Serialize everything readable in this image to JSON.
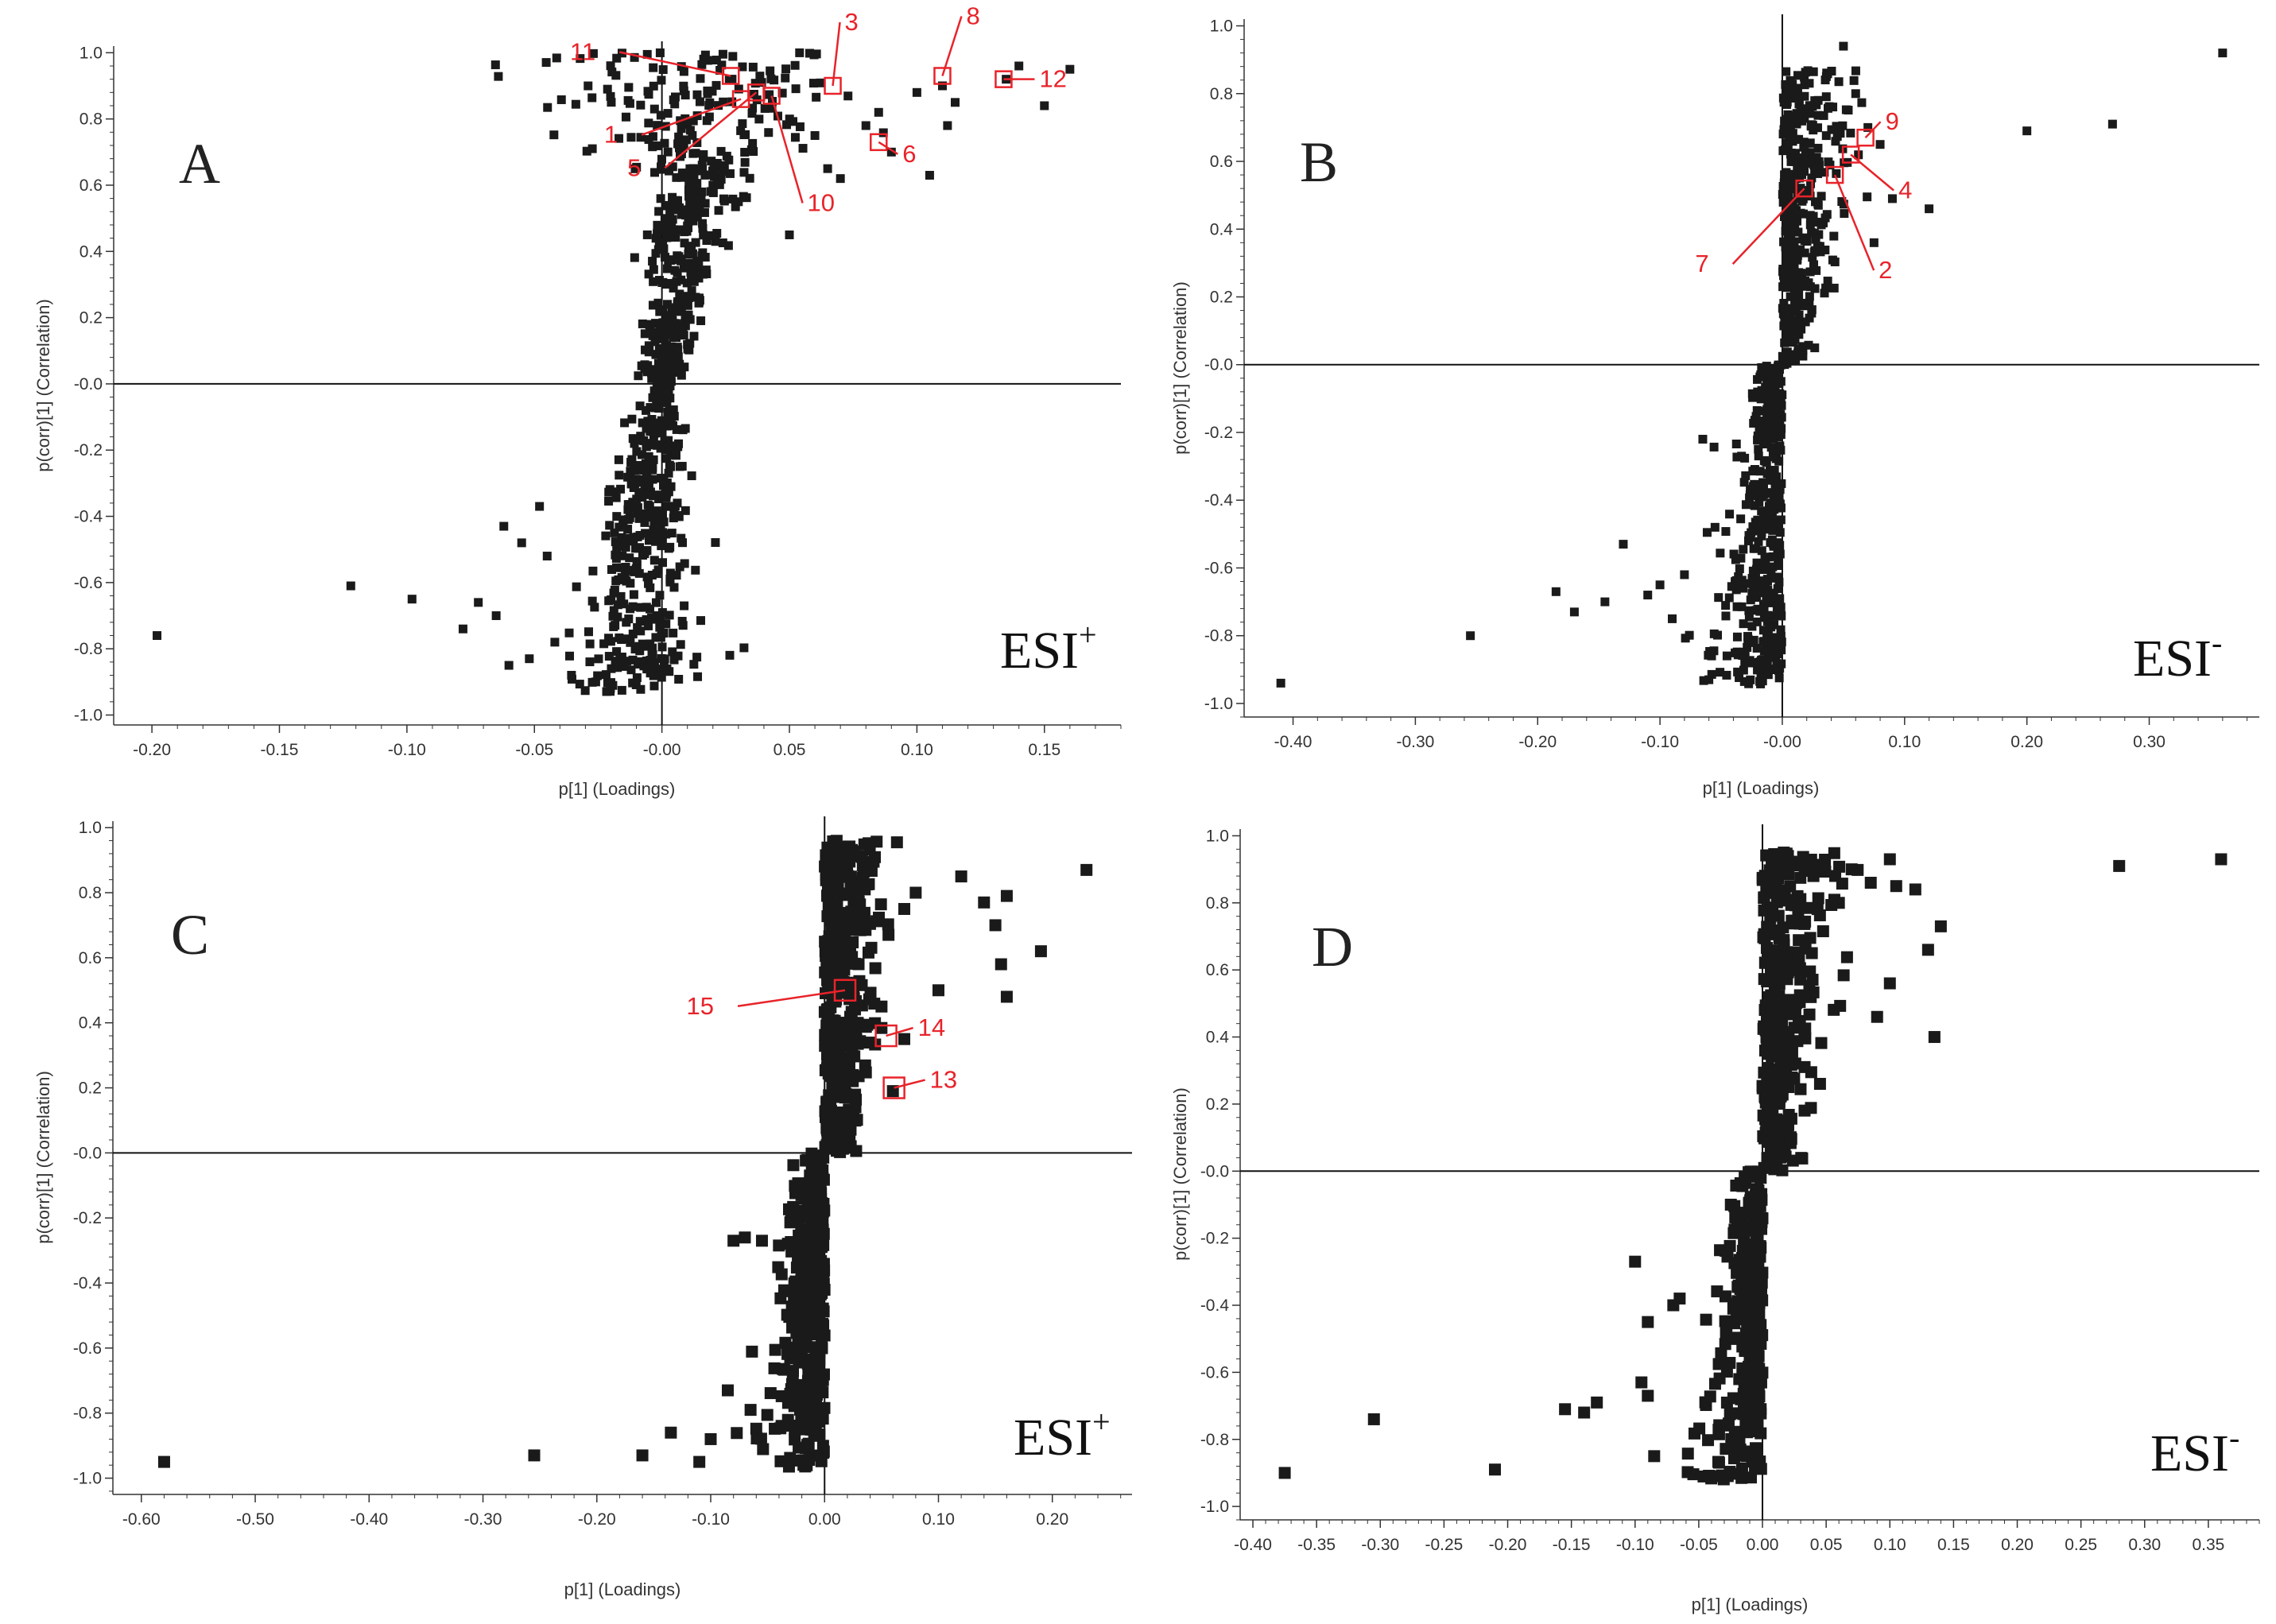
{
  "colors": {
    "point": "#1a1a1a",
    "annotation": "#e8232a",
    "axis": "#333333"
  },
  "chart_data": [
    {
      "type": "scatter",
      "panel": "A",
      "mode_label": "ESI",
      "mode_sup": "+",
      "xlabel": "p[1] (Loadings)",
      "ylabel": "p(corr)[1] (Correlation)",
      "xlim": [
        -0.215,
        0.18
      ],
      "ylim": [
        -1.03,
        1.02
      ],
      "xticks": [
        -0.2,
        -0.15,
        -0.1,
        -0.05,
        0.0,
        0.05,
        0.1,
        0.15
      ],
      "xtick_labels": [
        "-0.20",
        "-0.15",
        "-0.10",
        "-0.05",
        "-0.00",
        "0.05",
        "0.10",
        "0.15"
      ],
      "yticks": [
        1.0,
        0.8,
        0.6,
        0.4,
        0.2,
        0.0,
        -0.2,
        -0.4,
        -0.6,
        -0.8,
        -1.0
      ],
      "ytick_labels": [
        "1.0",
        "0.8",
        "0.6",
        "0.4",
        "0.2",
        "-0.0",
        "-0.2",
        "-0.4",
        "-0.6",
        "-0.8",
        "-1.0"
      ],
      "outliers": [
        [
          -0.198,
          -0.76
        ],
        [
          -0.122,
          -0.61
        ],
        [
          -0.098,
          -0.65
        ],
        [
          -0.078,
          -0.74
        ],
        [
          -0.072,
          -0.66
        ],
        [
          -0.065,
          -0.7
        ],
        [
          -0.06,
          -0.85
        ],
        [
          -0.062,
          -0.43
        ],
        [
          -0.055,
          -0.48
        ],
        [
          -0.048,
          -0.37
        ],
        [
          -0.052,
          -0.83
        ],
        [
          -0.042,
          -0.78
        ],
        [
          -0.045,
          -0.52
        ],
        [
          0.02,
          0.6
        ],
        [
          0.03,
          0.55
        ],
        [
          0.05,
          0.45
        ],
        [
          0.06,
          0.75
        ],
        [
          0.065,
          0.65
        ],
        [
          0.07,
          0.62
        ],
        [
          0.08,
          0.78
        ],
        [
          0.085,
          0.82
        ],
        [
          0.09,
          0.7
        ],
        [
          0.1,
          0.88
        ],
        [
          0.105,
          0.63
        ],
        [
          0.11,
          0.9
        ],
        [
          0.112,
          0.78
        ],
        [
          0.115,
          0.85
        ],
        [
          0.135,
          0.92
        ],
        [
          0.14,
          0.96
        ],
        [
          0.15,
          0.84
        ],
        [
          0.16,
          0.95
        ]
      ],
      "annotations": [
        {
          "label": "11",
          "x": 0.027,
          "y": 0.93
        },
        {
          "label": "1",
          "x": 0.031,
          "y": 0.86
        },
        {
          "label": "5",
          "x": 0.037,
          "y": 0.88
        },
        {
          "label": "10",
          "x": 0.043,
          "y": 0.87
        },
        {
          "label": "3",
          "x": 0.067,
          "y": 0.9
        },
        {
          "label": "6",
          "x": 0.085,
          "y": 0.73
        },
        {
          "label": "8",
          "x": 0.11,
          "y": 0.93
        },
        {
          "label": "12",
          "x": 0.134,
          "y": 0.92
        }
      ]
    },
    {
      "type": "scatter",
      "panel": "B",
      "mode_label": "ESI",
      "mode_sup": "-",
      "xlabel": "p[1] (Loadings)",
      "ylabel": "p(corr)[1] (Correlation)",
      "xlim": [
        -0.44,
        0.39
      ],
      "ylim": [
        -1.04,
        1.02
      ],
      "xticks": [
        -0.4,
        -0.3,
        -0.2,
        -0.1,
        0.0,
        0.1,
        0.2,
        0.3
      ],
      "xtick_labels": [
        "-0.40",
        "-0.30",
        "-0.20",
        "-0.10",
        "-0.00",
        "0.10",
        "0.20",
        "0.30"
      ],
      "yticks": [
        1.0,
        0.8,
        0.6,
        0.4,
        0.2,
        0.0,
        -0.2,
        -0.4,
        -0.6,
        -0.8,
        -1.0
      ],
      "ytick_labels": [
        "1.0",
        "0.8",
        "0.6",
        "0.4",
        "0.2",
        "-0.0",
        "-0.2",
        "-0.4",
        "-0.6",
        "-0.8",
        "-1.0"
      ],
      "outliers": [
        [
          -0.41,
          -0.94
        ],
        [
          -0.255,
          -0.8
        ],
        [
          -0.185,
          -0.67
        ],
        [
          -0.17,
          -0.73
        ],
        [
          -0.145,
          -0.7
        ],
        [
          -0.13,
          -0.53
        ],
        [
          -0.11,
          -0.68
        ],
        [
          -0.1,
          -0.65
        ],
        [
          -0.09,
          -0.75
        ],
        [
          -0.08,
          -0.62
        ],
        [
          -0.06,
          -0.93
        ],
        [
          -0.065,
          -0.22
        ],
        [
          -0.055,
          -0.48
        ],
        [
          0.05,
          0.94
        ],
        [
          0.06,
          0.8
        ],
        [
          0.07,
          0.7
        ],
        [
          0.08,
          0.65
        ],
        [
          0.09,
          0.49
        ],
        [
          0.12,
          0.46
        ],
        [
          0.075,
          0.36
        ],
        [
          0.2,
          0.69
        ],
        [
          0.27,
          0.71
        ],
        [
          0.36,
          0.92
        ]
      ],
      "annotations": [
        {
          "label": "9",
          "x": 0.068,
          "y": 0.67
        },
        {
          "label": "4",
          "x": 0.056,
          "y": 0.62
        },
        {
          "label": "2",
          "x": 0.043,
          "y": 0.56
        },
        {
          "label": "7",
          "x": 0.018,
          "y": 0.52
        }
      ]
    },
    {
      "type": "scatter",
      "panel": "C",
      "mode_label": "ESI",
      "mode_sup": "+",
      "xlabel": "p[1] (Loadings)",
      "ylabel": "p(corr)[1] (Correlation)",
      "xlim": [
        -0.625,
        0.27
      ],
      "ylim": [
        -1.05,
        1.02
      ],
      "xticks": [
        -0.6,
        -0.5,
        -0.4,
        -0.3,
        -0.2,
        -0.1,
        0.0,
        0.1,
        0.2
      ],
      "xtick_labels": [
        "-0.60",
        "-0.50",
        "-0.40",
        "-0.30",
        "-0.20",
        "-0.10",
        "0.00",
        "0.10",
        "0.20"
      ],
      "yticks": [
        1.0,
        0.8,
        0.6,
        0.4,
        0.2,
        0.0,
        -0.2,
        -0.4,
        -0.6,
        -0.8,
        -1.0
      ],
      "ytick_labels": [
        "1.0",
        "0.8",
        "0.6",
        "0.4",
        "0.2",
        "-0.0",
        "-0.2",
        "-0.4",
        "-0.6",
        "-0.8",
        "-1.0"
      ],
      "outliers": [
        [
          -0.58,
          -0.95
        ],
        [
          -0.255,
          -0.93
        ],
        [
          -0.16,
          -0.93
        ],
        [
          -0.135,
          -0.86
        ],
        [
          -0.11,
          -0.95
        ],
        [
          -0.1,
          -0.88
        ],
        [
          -0.085,
          -0.73
        ],
        [
          -0.065,
          -0.79
        ],
        [
          -0.08,
          -0.27
        ],
        [
          -0.07,
          -0.26
        ],
        [
          -0.055,
          -0.27
        ],
        [
          0.07,
          0.75
        ],
        [
          0.08,
          0.8
        ],
        [
          0.1,
          0.5
        ],
        [
          0.12,
          0.85
        ],
        [
          0.14,
          0.77
        ],
        [
          0.15,
          0.7
        ],
        [
          0.155,
          0.58
        ],
        [
          0.16,
          0.79
        ],
        [
          0.16,
          0.48
        ],
        [
          0.19,
          0.62
        ],
        [
          0.23,
          0.87
        ],
        [
          0.07,
          0.35
        ],
        [
          0.06,
          0.19
        ],
        [
          0.05,
          0.45
        ]
      ],
      "annotations": [
        {
          "label": "15",
          "x": 0.018,
          "y": 0.5
        },
        {
          "label": "14",
          "x": 0.054,
          "y": 0.36
        },
        {
          "label": "13",
          "x": 0.061,
          "y": 0.2
        }
      ]
    },
    {
      "type": "scatter",
      "panel": "D",
      "mode_label": "ESI",
      "mode_sup": "-",
      "xlabel": "p[1] (Loadings)",
      "ylabel": "p(corr)[1] (Correlation)",
      "xlim": [
        -0.41,
        0.39
      ],
      "ylim": [
        -1.04,
        1.02
      ],
      "xticks": [
        -0.4,
        -0.35,
        -0.3,
        -0.25,
        -0.2,
        -0.15,
        -0.1,
        -0.05,
        0.0,
        0.05,
        0.1,
        0.15,
        0.2,
        0.25,
        0.3,
        0.35
      ],
      "xtick_labels": [
        "-0.40",
        "-0.35",
        "-0.30",
        "-0.25",
        "-0.20",
        "-0.15",
        "-0.10",
        "-0.05",
        "0.00",
        "0.05",
        "0.10",
        "0.15",
        "0.20",
        "0.25",
        "0.30",
        "0.35"
      ],
      "yticks": [
        1.0,
        0.8,
        0.6,
        0.4,
        0.2,
        0.0,
        -0.2,
        -0.4,
        -0.6,
        -0.8,
        -1.0
      ],
      "ytick_labels": [
        "1.0",
        "0.8",
        "0.6",
        "0.4",
        "0.2",
        "-0.0",
        "-0.2",
        "-0.4",
        "-0.6",
        "-0.8",
        "-1.0"
      ],
      "outliers": [
        [
          -0.375,
          -0.9
        ],
        [
          -0.305,
          -0.74
        ],
        [
          -0.21,
          -0.89
        ],
        [
          -0.155,
          -0.71
        ],
        [
          -0.14,
          -0.72
        ],
        [
          -0.13,
          -0.69
        ],
        [
          -0.1,
          -0.27
        ],
        [
          -0.095,
          -0.63
        ],
        [
          -0.09,
          -0.67
        ],
        [
          -0.085,
          -0.85
        ],
        [
          -0.09,
          -0.45
        ],
        [
          -0.07,
          -0.4
        ],
        [
          -0.065,
          -0.38
        ],
        [
          0.02,
          0.94
        ],
        [
          0.04,
          0.88
        ],
        [
          0.06,
          0.8
        ],
        [
          0.07,
          0.9
        ],
        [
          0.085,
          0.86
        ],
        [
          0.1,
          0.93
        ],
        [
          0.105,
          0.85
        ],
        [
          0.12,
          0.84
        ],
        [
          0.13,
          0.66
        ],
        [
          0.14,
          0.73
        ],
        [
          0.135,
          0.4
        ],
        [
          0.1,
          0.56
        ],
        [
          0.09,
          0.46
        ],
        [
          0.28,
          0.91
        ],
        [
          0.36,
          0.93
        ]
      ],
      "annotations": []
    }
  ]
}
